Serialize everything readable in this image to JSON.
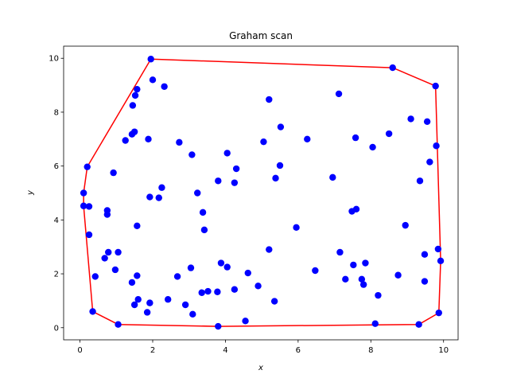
{
  "chart_data": {
    "type": "scatter",
    "title": "Graham scan",
    "xlabel": "x",
    "ylabel": "y",
    "xlim": [
      -0.45,
      10.4
    ],
    "ylim": [
      -0.45,
      10.45
    ],
    "xticks": [
      0,
      2,
      4,
      6,
      8,
      10
    ],
    "yticks": [
      0,
      2,
      4,
      6,
      8,
      10
    ],
    "xtick_labels": [
      "0",
      "2",
      "4",
      "6",
      "8",
      "10"
    ],
    "ytick_labels": [
      "0",
      "2",
      "4",
      "6",
      "8",
      "10"
    ],
    "grid": false,
    "legend": "none",
    "colors": {
      "points": "#0000ff",
      "hull": "#ff0000"
    },
    "points": [
      [
        1.95,
        9.97
      ],
      [
        2.0,
        9.2
      ],
      [
        2.32,
        8.95
      ],
      [
        1.57,
        8.85
      ],
      [
        1.52,
        8.62
      ],
      [
        1.45,
        8.25
      ],
      [
        1.5,
        7.27
      ],
      [
        1.43,
        7.18
      ],
      [
        1.25,
        6.95
      ],
      [
        1.88,
        7.0
      ],
      [
        2.73,
        6.88
      ],
      [
        3.08,
        6.42
      ],
      [
        0.2,
        5.97
      ],
      [
        0.92,
        5.75
      ],
      [
        0.1,
        5.0
      ],
      [
        0.1,
        4.52
      ],
      [
        0.25,
        4.5
      ],
      [
        0.75,
        4.35
      ],
      [
        0.75,
        4.2
      ],
      [
        1.92,
        4.85
      ],
      [
        2.17,
        4.82
      ],
      [
        2.25,
        5.2
      ],
      [
        3.23,
        5.0
      ],
      [
        1.57,
        3.78
      ],
      [
        0.25,
        3.45
      ],
      [
        0.42,
        1.9
      ],
      [
        0.68,
        2.58
      ],
      [
        0.78,
        2.8
      ],
      [
        1.05,
        2.8
      ],
      [
        0.97,
        2.15
      ],
      [
        1.43,
        1.68
      ],
      [
        1.57,
        1.93
      ],
      [
        0.35,
        0.6
      ],
      [
        1.05,
        0.12
      ],
      [
        1.5,
        0.85
      ],
      [
        1.6,
        1.05
      ],
      [
        1.85,
        0.57
      ],
      [
        1.92,
        0.92
      ],
      [
        2.42,
        1.05
      ],
      [
        2.68,
        1.9
      ],
      [
        2.9,
        0.85
      ],
      [
        3.05,
        2.22
      ],
      [
        3.1,
        0.5
      ],
      [
        3.35,
        1.3
      ],
      [
        3.52,
        1.35
      ],
      [
        3.78,
        1.33
      ],
      [
        3.38,
        4.28
      ],
      [
        3.42,
        3.63
      ],
      [
        3.8,
        5.45
      ],
      [
        3.88,
        2.4
      ],
      [
        4.05,
        2.25
      ],
      [
        4.05,
        6.48
      ],
      [
        4.25,
        1.42
      ],
      [
        4.3,
        5.9
      ],
      [
        4.25,
        5.38
      ],
      [
        3.8,
        0.05
      ],
      [
        4.55,
        0.25
      ],
      [
        4.62,
        2.03
      ],
      [
        4.9,
        1.55
      ],
      [
        5.05,
        6.9
      ],
      [
        5.2,
        8.47
      ],
      [
        5.2,
        2.9
      ],
      [
        5.35,
        0.98
      ],
      [
        5.38,
        5.55
      ],
      [
        5.5,
        6.02
      ],
      [
        5.52,
        7.45
      ],
      [
        5.95,
        3.72
      ],
      [
        6.25,
        7.0
      ],
      [
        6.47,
        2.12
      ],
      [
        6.95,
        5.58
      ],
      [
        7.12,
        8.68
      ],
      [
        7.15,
        2.8
      ],
      [
        7.3,
        1.8
      ],
      [
        7.48,
        4.32
      ],
      [
        7.52,
        2.33
      ],
      [
        7.58,
        7.05
      ],
      [
        7.6,
        4.4
      ],
      [
        7.75,
        1.8
      ],
      [
        7.8,
        1.6
      ],
      [
        7.85,
        2.4
      ],
      [
        8.05,
        6.7
      ],
      [
        8.12,
        0.15
      ],
      [
        8.2,
        1.2
      ],
      [
        8.5,
        7.2
      ],
      [
        8.6,
        9.65
      ],
      [
        8.75,
        1.95
      ],
      [
        8.95,
        3.8
      ],
      [
        9.1,
        7.75
      ],
      [
        9.32,
        0.12
      ],
      [
        9.35,
        5.45
      ],
      [
        9.48,
        1.72
      ],
      [
        9.48,
        2.72
      ],
      [
        9.55,
        7.65
      ],
      [
        9.62,
        6.15
      ],
      [
        9.78,
        8.97
      ],
      [
        9.8,
        6.75
      ],
      [
        9.85,
        2.92
      ],
      [
        9.87,
        0.55
      ],
      [
        9.92,
        2.48
      ]
    ],
    "hull": [
      [
        1.95,
        9.97
      ],
      [
        8.6,
        9.65
      ],
      [
        9.78,
        8.97
      ],
      [
        9.92,
        2.48
      ],
      [
        9.87,
        0.55
      ],
      [
        9.32,
        0.12
      ],
      [
        3.8,
        0.05
      ],
      [
        1.05,
        0.12
      ],
      [
        0.35,
        0.6
      ],
      [
        0.1,
        4.52
      ],
      [
        0.1,
        5.0
      ],
      [
        0.2,
        5.97
      ],
      [
        1.95,
        9.97
      ]
    ]
  }
}
